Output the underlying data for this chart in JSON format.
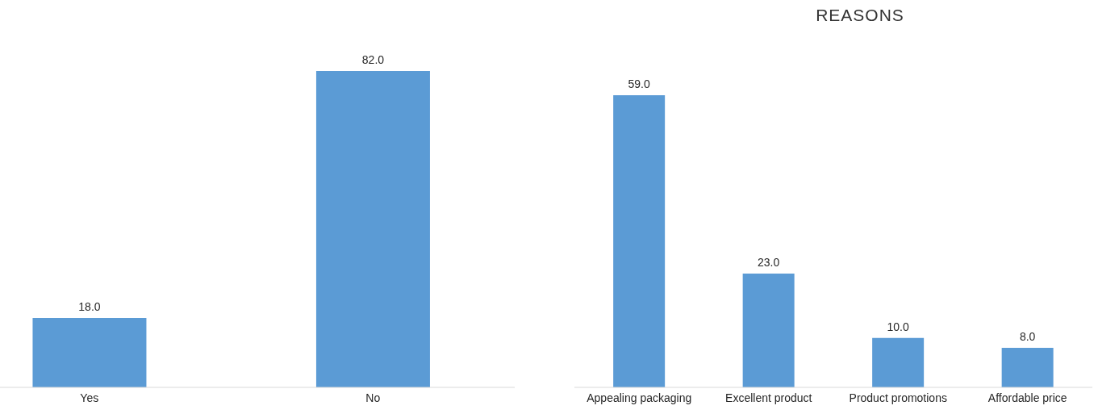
{
  "chart_data": [
    {
      "type": "bar",
      "categories": [
        "Yes",
        "No"
      ],
      "values": [
        18,
        82
      ],
      "color": "#5b9bd5",
      "value_labels": [
        "18.0",
        "82.0"
      ]
    },
    {
      "type": "bar",
      "title": "REASONS",
      "categories": [
        "Appealing packaging",
        "Excellent product",
        "Product promotions",
        "Affordable price"
      ],
      "values": [
        59,
        23,
        10,
        8
      ],
      "color": "#5b9bd5",
      "value_labels": [
        "59.0",
        "23.0",
        "10.0",
        "8.0"
      ]
    }
  ]
}
